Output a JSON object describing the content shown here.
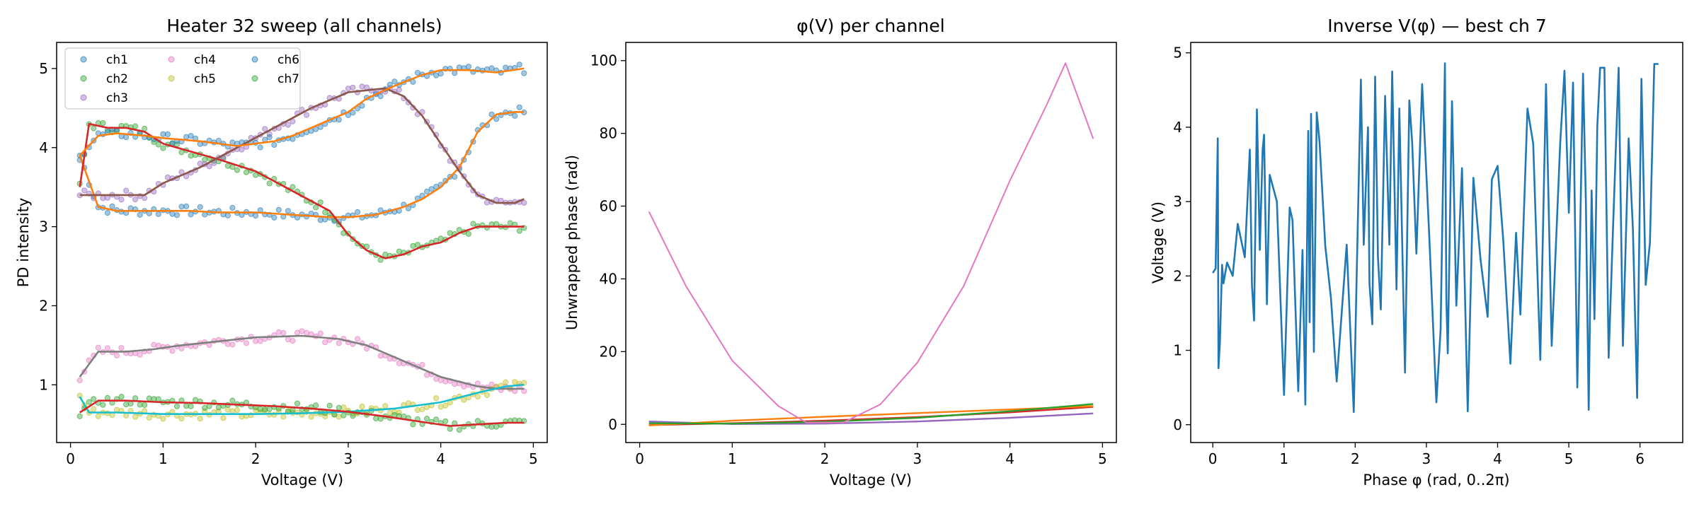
{
  "chart_data": [
    {
      "type": "scatter",
      "title": "Heater 32 sweep (all channels)",
      "xlabel": "Voltage (V)",
      "ylabel": "PD intensity",
      "xlim": [
        -0.15,
        5.15
      ],
      "ylim": [
        0.27,
        5.33
      ],
      "xticks": [
        "0",
        "1",
        "2",
        "3",
        "4",
        "5"
      ],
      "yticks": [
        "1",
        "2",
        "3",
        "4",
        "5"
      ],
      "legend": {
        "placement": "top-left",
        "columns": 3
      },
      "grid": false,
      "series": [
        {
          "name": "ch1",
          "color": "#1f77b4",
          "fit_color": "#ff7f0e",
          "x": [
            0.1,
            0.3,
            0.5,
            0.8,
            1.0,
            1.3,
            1.6,
            2.0,
            2.4,
            2.8,
            3.0,
            3.3,
            3.6,
            3.8,
            4.0,
            4.2,
            4.4,
            4.6,
            4.8,
            4.9
          ],
          "y": [
            3.9,
            3.25,
            3.2,
            3.2,
            3.2,
            3.2,
            3.18,
            3.18,
            3.15,
            3.12,
            3.12,
            3.15,
            3.25,
            3.35,
            3.5,
            3.75,
            4.2,
            4.42,
            4.45,
            4.45
          ]
        },
        {
          "name": "ch2",
          "color": "#2ca02c",
          "fit_color": "#d62728",
          "x": [
            0.1,
            0.2,
            0.4,
            0.6,
            0.8,
            1.0,
            1.3,
            1.6,
            2.0,
            2.4,
            2.8,
            3.0,
            3.2,
            3.4,
            3.6,
            3.8,
            4.0,
            4.2,
            4.4,
            4.6,
            4.8,
            4.9
          ],
          "y": [
            3.5,
            4.3,
            4.25,
            4.25,
            4.2,
            4.05,
            3.95,
            3.85,
            3.7,
            3.45,
            3.2,
            2.9,
            2.7,
            2.6,
            2.65,
            2.75,
            2.8,
            2.92,
            3.0,
            3.0,
            3.0,
            3.0
          ]
        },
        {
          "name": "ch3",
          "color": "#9467bd",
          "fit_color": "#8c564b",
          "x": [
            0.1,
            0.5,
            0.8,
            1.0,
            1.4,
            1.8,
            2.2,
            2.6,
            3.0,
            3.4,
            3.6,
            3.8,
            4.0,
            4.2,
            4.4,
            4.6,
            4.8,
            4.9
          ],
          "y": [
            3.4,
            3.4,
            3.4,
            3.55,
            3.75,
            4.0,
            4.25,
            4.5,
            4.7,
            4.75,
            4.65,
            4.4,
            4.05,
            3.7,
            3.4,
            3.3,
            3.3,
            3.35
          ]
        },
        {
          "name": "ch4",
          "color": "#e377c2",
          "fit_color": "#7f7f7f",
          "x": [
            0.1,
            0.3,
            0.6,
            0.9,
            1.2,
            1.6,
            2.0,
            2.5,
            2.9,
            3.2,
            3.6,
            4.0,
            4.4,
            4.6,
            4.9
          ],
          "y": [
            1.1,
            1.42,
            1.42,
            1.45,
            1.5,
            1.55,
            1.6,
            1.62,
            1.58,
            1.5,
            1.3,
            1.1,
            0.98,
            0.95,
            0.95
          ]
        },
        {
          "name": "ch5",
          "color": "#bcbd22",
          "fit_color": "#17becf",
          "x": [
            0.1,
            0.2,
            0.5,
            1.0,
            1.5,
            2.0,
            2.5,
            3.0,
            3.5,
            4.0,
            4.4,
            4.7,
            4.9
          ],
          "y": [
            0.85,
            0.65,
            0.65,
            0.63,
            0.63,
            0.63,
            0.64,
            0.66,
            0.7,
            0.78,
            0.9,
            0.98,
            1.0
          ]
        },
        {
          "name": "ch6",
          "color": "#1f77b4",
          "fit_color": "#ff7f0e",
          "x": [
            0.1,
            0.3,
            0.5,
            0.8,
            1.0,
            1.4,
            1.8,
            2.2,
            2.4,
            2.8,
            3.0,
            3.2,
            3.5,
            3.8,
            4.0,
            4.3,
            4.6,
            4.9
          ],
          "y": [
            3.9,
            4.15,
            4.18,
            4.15,
            4.12,
            4.08,
            4.02,
            4.08,
            4.15,
            4.35,
            4.45,
            4.62,
            4.78,
            4.92,
            4.98,
            4.98,
            4.95,
            5.0
          ]
        },
        {
          "name": "ch7",
          "color": "#2ca02c",
          "fit_color": "#d62728",
          "x": [
            0.1,
            0.3,
            0.6,
            1.0,
            1.4,
            1.8,
            2.2,
            2.6,
            3.0,
            3.4,
            3.8,
            4.1,
            4.4,
            4.7,
            4.9
          ],
          "y": [
            0.65,
            0.8,
            0.8,
            0.78,
            0.77,
            0.75,
            0.73,
            0.7,
            0.66,
            0.6,
            0.53,
            0.48,
            0.5,
            0.52,
            0.52
          ]
        }
      ]
    },
    {
      "type": "line",
      "title": "φ(V) per channel",
      "xlabel": "Voltage (V)",
      "ylabel": "Unwrapped phase (rad)",
      "xlim": [
        -0.15,
        5.15
      ],
      "ylim": [
        -5,
        105
      ],
      "xticks": [
        "0",
        "1",
        "2",
        "3",
        "4",
        "5"
      ],
      "yticks": [
        "0",
        "20",
        "40",
        "60",
        "80",
        "100"
      ],
      "grid": false,
      "series": [
        {
          "color": "#e377c2",
          "x": [
            0.1,
            0.5,
            1.0,
            1.5,
            1.8,
            2.2,
            2.6,
            3.0,
            3.5,
            4.0,
            4.4,
            4.6,
            4.9
          ],
          "y": [
            58.5,
            38.0,
            17.5,
            5.0,
            0.5,
            0.5,
            5.5,
            17.0,
            38.0,
            67.0,
            88.0,
            99.3,
            78.5
          ]
        },
        {
          "color": "#2ca02c",
          "x": [
            0.1,
            1.0,
            2.0,
            3.0,
            4.0,
            4.9
          ],
          "y": [
            0.3,
            0.2,
            0.7,
            1.8,
            3.6,
            5.6
          ]
        },
        {
          "color": "#ff7f0e",
          "x": [
            0.1,
            1.0,
            2.0,
            3.0,
            4.0,
            4.9
          ],
          "y": [
            -0.3,
            1.0,
            2.1,
            3.1,
            4.1,
            5.0
          ]
        },
        {
          "color": "#d62728",
          "x": [
            0.1,
            1.0,
            2.0,
            3.0,
            4.0,
            4.9
          ],
          "y": [
            -0.2,
            0.3,
            1.0,
            2.0,
            3.3,
            4.8
          ]
        },
        {
          "color": "#9467bd",
          "x": [
            0.1,
            1.0,
            2.0,
            3.0,
            4.0,
            4.9
          ],
          "y": [
            0.8,
            0.1,
            0.2,
            0.8,
            1.8,
            3.0
          ]
        }
      ]
    },
    {
      "type": "line",
      "title": "Inverse V(φ) — best ch 7",
      "xlabel": "Phase φ (rad, 0..2π)",
      "ylabel": "Voltage (V)",
      "xlim": [
        -0.31,
        6.6
      ],
      "ylim": [
        -0.24,
        5.14
      ],
      "xticks": [
        "0",
        "1",
        "2",
        "3",
        "4",
        "5",
        "6"
      ],
      "yticks": [
        "0",
        "1",
        "2",
        "3",
        "4",
        "5"
      ],
      "grid": false,
      "series": [
        {
          "color": "#1f77b4",
          "x": [
            0.0,
            0.04,
            0.07,
            0.08,
            0.1,
            0.13,
            0.15,
            0.2,
            0.28,
            0.35,
            0.45,
            0.52,
            0.55,
            0.58,
            0.62,
            0.66,
            0.7,
            0.72,
            0.76,
            0.8,
            0.9,
            1.0,
            1.08,
            1.12,
            1.2,
            1.26,
            1.3,
            1.34,
            1.36,
            1.38,
            1.42,
            1.46,
            1.5,
            1.58,
            1.66,
            1.74,
            1.88,
            1.98,
            2.08,
            2.12,
            2.18,
            2.2,
            2.24,
            2.28,
            2.32,
            2.36,
            2.42,
            2.48,
            2.52,
            2.58,
            2.62,
            2.7,
            2.76,
            2.8,
            2.86,
            2.94,
            3.04,
            3.14,
            3.2,
            3.26,
            3.28,
            3.3,
            3.36,
            3.42,
            3.5,
            3.58,
            3.66,
            3.76,
            3.86,
            3.92,
            4.0,
            4.08,
            4.18,
            4.26,
            4.32,
            4.42,
            4.5,
            4.6,
            4.68,
            4.76,
            4.88,
            4.94,
            5.0,
            5.06,
            5.12,
            5.2,
            5.24,
            5.28,
            5.32,
            5.36,
            5.4,
            5.44,
            5.5,
            5.56,
            5.62,
            5.7,
            5.76,
            5.84,
            5.9,
            5.96,
            6.02,
            6.08,
            6.14,
            6.2,
            6.26
          ],
          "y": [
            2.04,
            2.1,
            3.85,
            0.76,
            1.1,
            2.15,
            1.9,
            2.18,
            2.0,
            2.7,
            2.25,
            3.7,
            1.88,
            1.4,
            4.24,
            2.35,
            3.7,
            3.9,
            1.62,
            3.36,
            3.0,
            0.4,
            2.92,
            2.75,
            0.45,
            2.35,
            0.27,
            3.95,
            1.38,
            4.18,
            0.98,
            4.2,
            3.8,
            2.4,
            1.7,
            0.58,
            2.42,
            0.17,
            4.64,
            2.42,
            4.0,
            1.9,
            1.35,
            4.68,
            2.25,
            1.55,
            4.42,
            2.42,
            4.75,
            1.82,
            4.25,
            0.7,
            4.36,
            3.8,
            2.3,
            4.58,
            2.55,
            0.3,
            1.28,
            4.86,
            1.7,
            0.96,
            4.35,
            1.6,
            3.45,
            0.18,
            3.32,
            2.22,
            1.45,
            3.3,
            3.48,
            2.48,
            0.82,
            2.58,
            1.48,
            4.25,
            3.78,
            0.87,
            4.58,
            1.06,
            3.8,
            4.76,
            2.85,
            4.6,
            0.5,
            4.72,
            3.0,
            0.2,
            3.15,
            1.42,
            4.0,
            4.8,
            4.8,
            0.9,
            2.6,
            4.8,
            1.06,
            3.85,
            2.64,
            0.36,
            4.65,
            1.88,
            2.45,
            4.85,
            4.85
          ]
        }
      ]
    }
  ]
}
